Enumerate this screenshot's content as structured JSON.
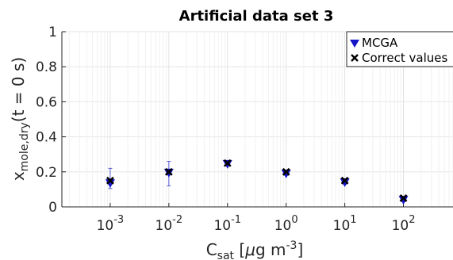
{
  "chart_data": {
    "type": "scatter",
    "title": "Artificial data set 3",
    "xlabel": {
      "main": "C",
      "sub": "sat",
      "unit_pre": " [",
      "mu": "μ",
      "unit_mid": "g m",
      "sup": "-3",
      "unit_post": "]"
    },
    "ylabel": {
      "main": "x",
      "sub": "mole,dry",
      "post": "(t = 0 s)"
    },
    "x_scale": "log",
    "xlim": [
      0.00015,
      700
    ],
    "ylim": [
      0,
      1
    ],
    "grid": true,
    "legend_position": "top-right",
    "yticks": [
      {
        "value": 0,
        "label": "0"
      },
      {
        "value": 0.2,
        "label": "0.2"
      },
      {
        "value": 0.4,
        "label": "0.4"
      },
      {
        "value": 0.6,
        "label": "0.6"
      },
      {
        "value": 0.8,
        "label": "0.8"
      },
      {
        "value": 1,
        "label": "1"
      }
    ],
    "xticks": [
      {
        "value": 0.001,
        "base": "10",
        "exp": "-3"
      },
      {
        "value": 0.01,
        "base": "10",
        "exp": "-2"
      },
      {
        "value": 0.1,
        "base": "10",
        "exp": "-1"
      },
      {
        "value": 1,
        "base": "10",
        "exp": "0"
      },
      {
        "value": 10,
        "base": "10",
        "exp": "1"
      },
      {
        "value": 100,
        "base": "10",
        "exp": "2"
      }
    ],
    "x": [
      0.001,
      0.01,
      0.1,
      1,
      10,
      100
    ],
    "series": [
      {
        "name": "MCGA",
        "marker": "triangle-down",
        "color": "#1414c8",
        "values": [
          0.135,
          0.195,
          0.245,
          0.19,
          0.14,
          0.04
        ],
        "err_low": [
          0.105,
          0.12,
          0.235,
          0.18,
          0.13,
          0.03
        ],
        "err_high": [
          0.22,
          0.26,
          0.255,
          0.2,
          0.15,
          0.05
        ]
      },
      {
        "name": "Correct values",
        "marker": "x",
        "color": "#000000",
        "values": [
          0.15,
          0.2,
          0.25,
          0.2,
          0.15,
          0.05
        ]
      }
    ]
  }
}
